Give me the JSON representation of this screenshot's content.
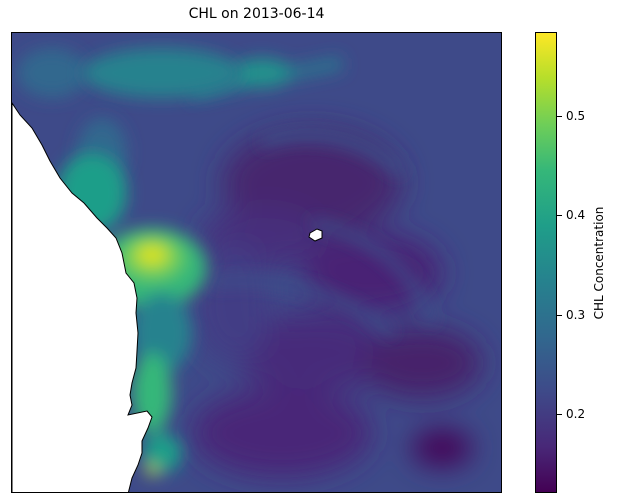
{
  "title": "CHL on 2013-06-14",
  "colorbar": {
    "label": "CHL Concentration",
    "range": [
      0.12,
      0.585
    ],
    "ticks": [
      {
        "value": 0.2,
        "label": "0.2"
      },
      {
        "value": 0.3,
        "label": "0.3"
      },
      {
        "value": 0.4,
        "label": "0.4"
      },
      {
        "value": 0.5,
        "label": "0.5"
      }
    ],
    "colormap": "viridis"
  },
  "map": {
    "land_color": "#ffffff",
    "coastline_color": "#000000",
    "features": [
      "coastline",
      "small-island",
      "chlorophyll-raster"
    ]
  }
}
